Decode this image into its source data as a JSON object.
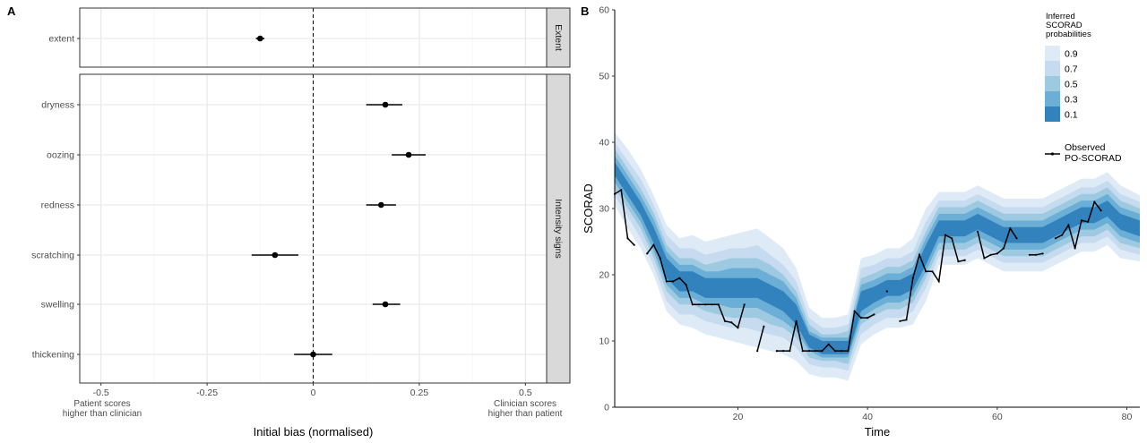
{
  "panel_a": {
    "letter": "A",
    "xlabel": "Initial bias (normalised)",
    "x_ticks": [
      -0.5,
      -0.25,
      0,
      0.25,
      0.5
    ],
    "x_tick_labels": [
      "-0.5",
      "-0.25",
      "0",
      "0.25",
      "0.5"
    ],
    "left_note": [
      "Patient scores",
      "higher than clinician"
    ],
    "right_note": [
      "Clinician scores",
      "higher than patient"
    ],
    "facets": [
      {
        "strip": "Extent",
        "rows": [
          {
            "label": "extent",
            "est": -0.125,
            "lo": -0.135,
            "hi": -0.115
          }
        ]
      },
      {
        "strip": "Intensity signs",
        "rows": [
          {
            "label": "dryness",
            "est": 0.17,
            "lo": 0.125,
            "hi": 0.21
          },
          {
            "label": "oozing",
            "est": 0.225,
            "lo": 0.185,
            "hi": 0.265
          },
          {
            "label": "redness",
            "est": 0.16,
            "lo": 0.125,
            "hi": 0.195
          },
          {
            "label": "scratching",
            "est": -0.09,
            "lo": -0.145,
            "hi": -0.035
          },
          {
            "label": "swelling",
            "est": 0.17,
            "lo": 0.14,
            "hi": 0.205
          },
          {
            "label": "thickening",
            "est": 0.0,
            "lo": -0.045,
            "hi": 0.045
          }
        ]
      }
    ]
  },
  "panel_b": {
    "letter": "B",
    "xlabel": "Time",
    "ylabel": "SCORAD",
    "x_ticks": [
      20,
      40,
      60,
      80
    ],
    "y_ticks": [
      0,
      10,
      20,
      30,
      40,
      50,
      60
    ],
    "xlim": [
      1,
      82
    ],
    "ylim": [
      0,
      60
    ],
    "legend_title": [
      "Inferred",
      "SCORAD",
      "probabilities"
    ],
    "prob_levels": [
      "0.9",
      "0.7",
      "0.5",
      "0.3",
      "0.1"
    ],
    "colors": {
      "band_0.9": "#deebf7",
      "band_0.7": "#c6dbef",
      "band_0.5": "#9ecae1",
      "band_0.3": "#6baed6",
      "band_0.1": "#3182bd",
      "observed": "#000000"
    },
    "observed_label": [
      "Observed",
      "PO-SCORAD"
    ],
    "center_t": [
      1,
      3,
      5,
      7,
      9,
      11,
      13,
      15,
      17,
      19,
      21,
      23,
      25,
      27,
      29,
      31,
      33,
      35,
      37,
      39,
      41,
      43,
      45,
      47,
      49,
      51,
      53,
      55,
      57,
      59,
      61,
      63,
      65,
      67,
      69,
      71,
      73,
      75,
      77,
      79,
      82
    ],
    "center_y": [
      36,
      33,
      30,
      26,
      21,
      19,
      19,
      18,
      18,
      18,
      18,
      18,
      17,
      16,
      14,
      10,
      9,
      9,
      9,
      16,
      17,
      18,
      18,
      19,
      23,
      27,
      27,
      27,
      28,
      27,
      26,
      26,
      26,
      26,
      27,
      28,
      29,
      29,
      30,
      28,
      27
    ],
    "half_widths": {
      "0.1": [
        1.0,
        1.0,
        1.0,
        1.2,
        1.5,
        1.5,
        1.5,
        1.5,
        1.5,
        1.5,
        1.5,
        1.5,
        1.5,
        1.5,
        1.5,
        1.0,
        1.0,
        1.0,
        1.0,
        1.5,
        1.2,
        1.2,
        1.2,
        1.2,
        1.5,
        1.2,
        1.2,
        1.2,
        1.2,
        1.2,
        1.2,
        1.2,
        1.2,
        1.2,
        1.2,
        1.2,
        1.2,
        1.2,
        1.2,
        1.2,
        1.2
      ],
      "0.3": [
        2.0,
        2.0,
        2.0,
        2.4,
        2.5,
        2.5,
        2.5,
        2.5,
        2.5,
        3.0,
        3.0,
        3.0,
        3.0,
        3.0,
        2.5,
        1.5,
        1.5,
        1.5,
        1.5,
        2.5,
        2.2,
        2.2,
        2.2,
        2.2,
        2.5,
        2.2,
        2.2,
        2.2,
        2.2,
        2.2,
        2.2,
        2.2,
        2.2,
        2.2,
        2.2,
        2.2,
        2.2,
        2.2,
        2.2,
        2.2,
        2.2
      ],
      "0.5": [
        3.0,
        3.0,
        3.0,
        3.4,
        3.5,
        3.5,
        3.5,
        3.5,
        4.0,
        4.5,
        4.5,
        4.5,
        4.5,
        4.0,
        3.5,
        2.5,
        2.0,
        2.0,
        2.5,
        3.5,
        3.2,
        3.2,
        3.2,
        3.2,
        3.5,
        3.2,
        3.2,
        3.2,
        3.2,
        3.2,
        3.2,
        3.2,
        3.2,
        3.2,
        3.2,
        3.2,
        3.2,
        3.2,
        3.2,
        3.2,
        3.0
      ],
      "0.7": [
        4.0,
        4.2,
        4.5,
        4.6,
        5.0,
        5.0,
        5.0,
        5.0,
        5.5,
        6.0,
        6.0,
        6.5,
        6.0,
        5.5,
        5.0,
        3.5,
        3.0,
        3.0,
        3.5,
        5.0,
        4.5,
        4.5,
        4.5,
        4.5,
        5.0,
        4.2,
        4.2,
        4.2,
        4.2,
        4.2,
        4.2,
        4.2,
        4.2,
        4.2,
        4.2,
        4.2,
        4.2,
        4.2,
        4.2,
        4.2,
        4.0
      ],
      "0.9": [
        5.5,
        6.0,
        6.0,
        6.0,
        6.5,
        6.5,
        7.0,
        7.0,
        7.5,
        8.0,
        8.5,
        9.0,
        8.5,
        8.0,
        7.0,
        5.0,
        4.5,
        4.5,
        5.0,
        6.5,
        6.0,
        6.0,
        6.0,
        6.5,
        7.0,
        5.5,
        5.5,
        5.5,
        5.5,
        5.5,
        5.5,
        5.5,
        5.5,
        5.5,
        5.5,
        5.5,
        5.5,
        5.5,
        5.5,
        5.5,
        5.0
      ]
    },
    "observed_segments": [
      [
        [
          1,
          32.2
        ],
        [
          2,
          32.8
        ],
        [
          3,
          25.5
        ],
        [
          4,
          24.5
        ]
      ],
      [
        [
          6,
          23.2
        ],
        [
          7,
          24.5
        ],
        [
          8,
          22.5
        ],
        [
          9,
          19
        ],
        [
          10,
          19
        ],
        [
          11,
          19.5
        ],
        [
          12,
          18.5
        ],
        [
          13,
          15.5
        ],
        [
          14,
          15.5
        ],
        [
          15,
          15.5
        ],
        [
          16,
          15.5
        ],
        [
          17,
          15.5
        ],
        [
          18,
          13
        ],
        [
          19,
          12.8
        ],
        [
          20,
          12
        ],
        [
          21,
          15.5
        ]
      ],
      [
        [
          23,
          8.5
        ],
        [
          24,
          12.2
        ]
      ],
      [
        [
          26,
          8.5
        ],
        [
          27,
          8.5
        ],
        [
          28,
          8.5
        ],
        [
          29,
          13
        ],
        [
          30,
          8.5
        ],
        [
          31,
          8.5
        ],
        [
          32,
          8.5
        ],
        [
          33,
          8.5
        ],
        [
          34,
          9.5
        ],
        [
          35,
          8.5
        ],
        [
          36,
          8.5
        ],
        [
          37,
          8.5
        ],
        [
          38,
          14.5
        ],
        [
          39,
          13.5
        ],
        [
          40,
          13.5
        ],
        [
          41,
          14
        ]
      ],
      [
        [
          43,
          17.5
        ]
      ],
      [
        [
          45,
          13
        ],
        [
          46,
          13.2
        ],
        [
          47,
          19.5
        ],
        [
          48,
          23
        ],
        [
          49,
          20.5
        ],
        [
          50,
          20.5
        ],
        [
          51,
          19
        ],
        [
          52,
          26
        ],
        [
          53,
          25.5
        ],
        [
          54,
          22
        ],
        [
          55,
          22.2
        ]
      ],
      [
        [
          57,
          26.5
        ],
        [
          58,
          22.5
        ],
        [
          59,
          23
        ],
        [
          60,
          23.2
        ],
        [
          61,
          24
        ],
        [
          62,
          27
        ],
        [
          63,
          25.5
        ]
      ],
      [
        [
          65,
          23
        ],
        [
          66,
          23
        ],
        [
          67,
          23.2
        ]
      ],
      [
        [
          69,
          25.5
        ],
        [
          70,
          26
        ],
        [
          71,
          27.5
        ],
        [
          72,
          24
        ],
        [
          73,
          28.2
        ],
        [
          74,
          28
        ],
        [
          75,
          31
        ],
        [
          76,
          29.7
        ]
      ]
    ]
  },
  "chart_data": [
    {
      "type": "scatter",
      "xlabel": "Initial bias (normalised)",
      "xlim": [
        -0.55,
        0.55
      ],
      "x_ticks": [
        -0.5,
        -0.25,
        0,
        0.25,
        0.5
      ],
      "annotations": [
        "Patient scores higher than clinician",
        "Clinician scores higher than patient"
      ],
      "facets": [
        "Extent",
        "Intensity signs"
      ],
      "series": [
        {
          "categories": [
            "extent",
            "dryness",
            "oozing",
            "redness",
            "scratching",
            "swelling",
            "thickening"
          ],
          "values": [
            -0.125,
            0.17,
            0.225,
            0.16,
            -0.09,
            0.17,
            0.0
          ],
          "lower": [
            -0.135,
            0.125,
            0.185,
            0.125,
            -0.145,
            0.14,
            -0.045
          ],
          "upper": [
            -0.115,
            0.21,
            0.265,
            0.195,
            -0.035,
            0.205,
            0.045
          ]
        }
      ],
      "reference_line": {
        "x": 0,
        "style": "dashed"
      },
      "grid": true
    },
    {
      "type": "area",
      "xlabel": "Time",
      "ylabel": "SCORAD",
      "xlim": [
        1,
        82
      ],
      "ylim": [
        0,
        60
      ],
      "legend": [
        "Inferred SCORAD probabilities: 0.9, 0.7, 0.5, 0.3, 0.1",
        "Observed PO-SCORAD"
      ],
      "legend_placement": "top-right",
      "grid": false,
      "note": "Nested credible bands around a latent SCORAD trajectory with observed PO-SCORAD line overlay; values in panel_b"
    }
  ]
}
